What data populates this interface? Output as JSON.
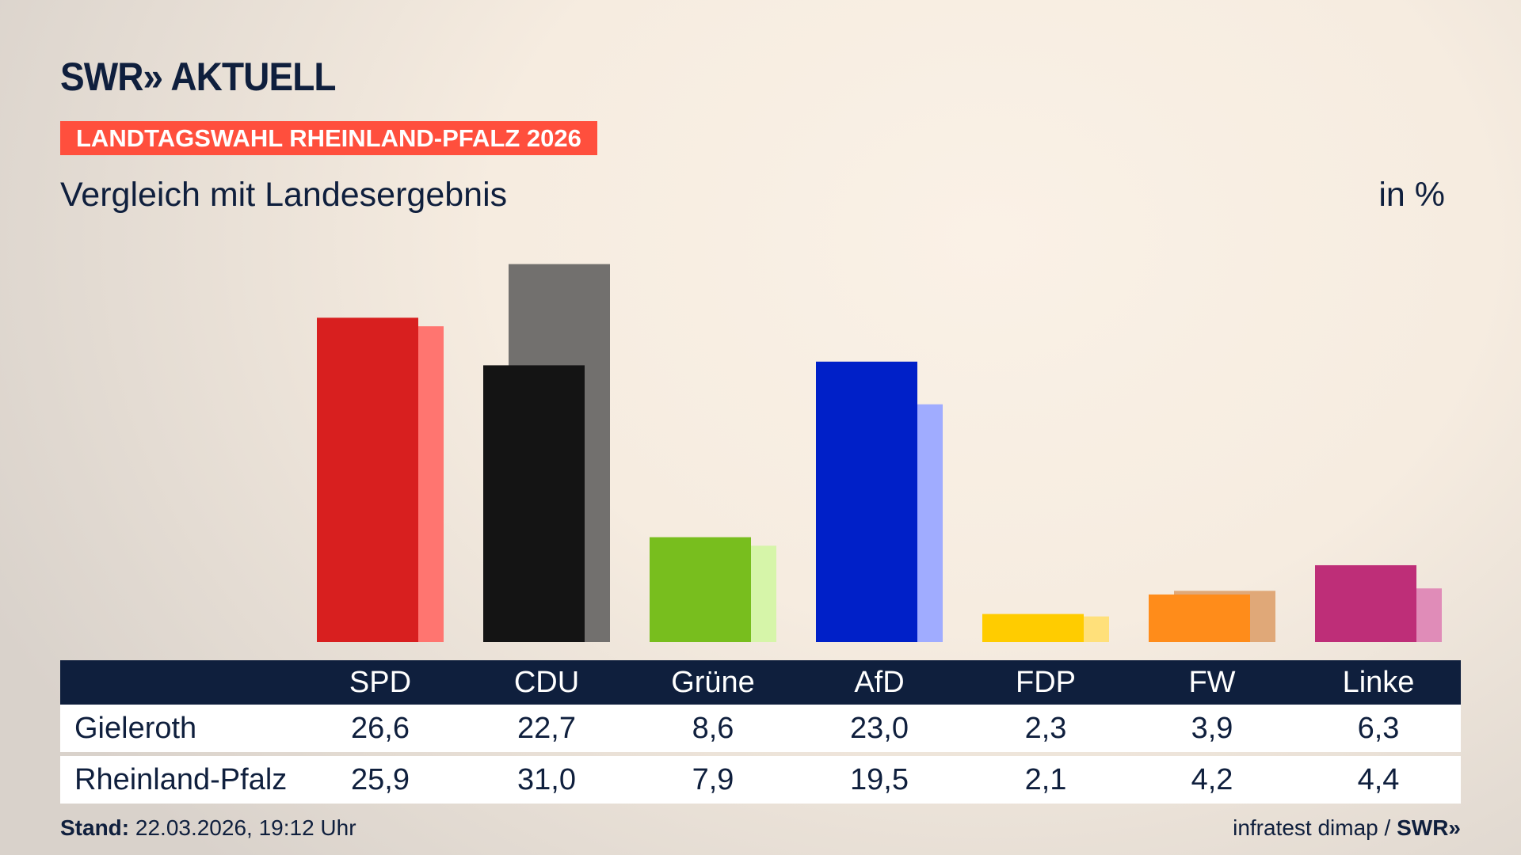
{
  "header": {
    "logo": "SWR» AKTUELL",
    "banner": "LANDTAGSWAHL RHEINLAND-PFALZ 2026",
    "subtitle": "Vergleich mit Landesergebnis",
    "unit": "in %"
  },
  "footer": {
    "stand_label": "Stand:",
    "stand_value": "22.03.2026, 19:12 Uhr",
    "source": "infratest dimap /",
    "source_logo": "SWR»"
  },
  "chart_data": {
    "type": "bar",
    "categories": [
      "SPD",
      "CDU",
      "Grüne",
      "AfD",
      "FDP",
      "FW",
      "Linke"
    ],
    "series": [
      {
        "name": "Gieleroth",
        "values": [
          26.6,
          22.7,
          8.6,
          23.0,
          2.3,
          3.9,
          6.3
        ],
        "labels": [
          "26,6",
          "22,7",
          "8,6",
          "23,0",
          "2,3",
          "3,9",
          "6,3"
        ],
        "colors": [
          "#d81f1f",
          "#141414",
          "#78be1e",
          "#0020c8",
          "#ffcc00",
          "#ff8c1a",
          "#be2e78"
        ]
      },
      {
        "name": "Rheinland-Pfalz",
        "values": [
          25.9,
          31.0,
          7.9,
          19.5,
          2.1,
          4.2,
          4.4
        ],
        "labels": [
          "25,9",
          "31,0",
          "7,9",
          "19,5",
          "2,1",
          "4,2",
          "4,4"
        ],
        "colors": [
          "#ff7570",
          "#72706e",
          "#d6f5a9",
          "#a0acff",
          "#ffe07a",
          "#e0a878",
          "#e08cb8"
        ]
      }
    ],
    "ylim": [
      0,
      31
    ],
    "grid": false
  }
}
